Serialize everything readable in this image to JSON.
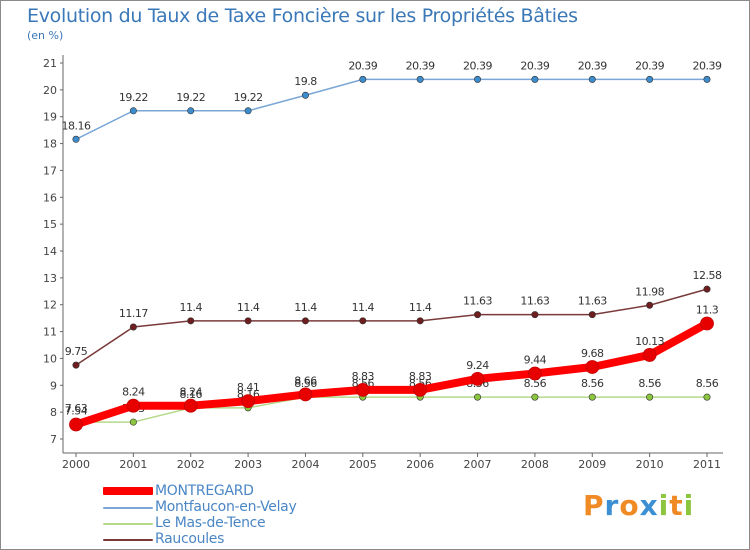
{
  "title": "Evolution du Taux de Taxe Foncière sur les Propriétés Bâties",
  "unit": "(en %)",
  "brand": {
    "letters": [
      "P",
      "r",
      "o",
      "x",
      "i",
      "t",
      "i"
    ],
    "colors": [
      "#f08a24",
      "#3c8fd2",
      "#f08a24",
      "#3c8fd2",
      "#8cc63f",
      "#f08a24",
      "#8cc63f"
    ]
  },
  "chart_data": {
    "type": "line",
    "title": "Evolution du Taux de Taxe Foncière sur les Propriétés Bâties",
    "ylabel": "(en %)",
    "xlabel": "",
    "x": [
      "2000",
      "2001",
      "2002",
      "2003",
      "2004",
      "2005",
      "2006",
      "2007",
      "2008",
      "2009",
      "2010",
      "2011"
    ],
    "ylim": [
      7,
      21
    ],
    "yticks": [
      "7",
      "8",
      "9",
      "10",
      "11",
      "12",
      "13",
      "14",
      "15",
      "16",
      "17",
      "18",
      "19",
      "20",
      "21"
    ],
    "grid": false,
    "series": [
      {
        "name": "Montfaucon-en-Velay",
        "color": "#7aa7d6",
        "marker": "#3d8ccc",
        "values": [
          18.16,
          19.22,
          19.22,
          19.22,
          19.8,
          20.39,
          20.39,
          20.39,
          20.39,
          20.39,
          20.39,
          20.39
        ],
        "labels": [
          "18.16",
          "19.22",
          "19.22",
          "19.22",
          "19.8",
          "20.39",
          "20.39",
          "20.39",
          "20.39",
          "20.39",
          "20.39",
          "20.39"
        ]
      },
      {
        "name": "Raucoules",
        "color": "#7a3a3a",
        "marker": "#6e1e1e",
        "values": [
          9.75,
          11.17,
          11.4,
          11.4,
          11.4,
          11.4,
          11.4,
          11.63,
          11.63,
          11.63,
          11.98,
          12.58
        ],
        "labels": [
          "9.75",
          "11.17",
          "11.4",
          "11.4",
          "11.4",
          "11.4",
          "11.4",
          "11.63",
          "11.63",
          "11.63",
          "11.98",
          "12.58"
        ]
      },
      {
        "name": "Le Mas-de-Tence",
        "color": "#b5d98a",
        "marker": "#8cc63f",
        "values": [
          7.63,
          7.63,
          8.16,
          8.16,
          8.56,
          8.56,
          8.56,
          8.56,
          8.56,
          8.56,
          8.56,
          8.56
        ],
        "labels": [
          "7.63",
          "7.63",
          "8.16",
          "8.16",
          "8.56",
          "8.56",
          "8.56",
          "8.56",
          "8.56",
          "8.56",
          "8.56",
          "8.56"
        ]
      },
      {
        "name": "MONTREGARD",
        "color": "#ff0000",
        "marker": "#e60000",
        "values": [
          7.54,
          8.24,
          8.24,
          8.41,
          8.66,
          8.83,
          8.83,
          9.24,
          9.44,
          9.68,
          10.13,
          11.3
        ],
        "labels": [
          "7.54",
          "8.24",
          "8.24",
          "8.41",
          "8.66",
          "8.83",
          "8.83",
          "9.24",
          "9.44",
          "9.68",
          "10.13",
          "11.3"
        ]
      }
    ],
    "legend": [
      "MONTREGARD",
      "Montfaucon-en-Velay",
      "Le Mas-de-Tence",
      "Raucoules"
    ],
    "legend_position": "bottom-left"
  }
}
